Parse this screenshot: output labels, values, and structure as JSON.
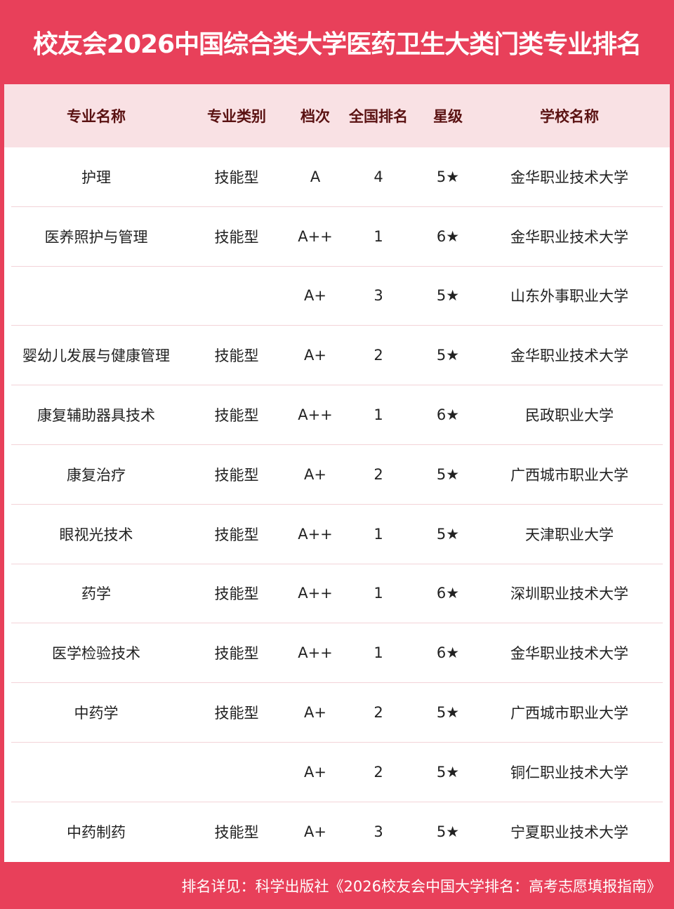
{
  "title": "校友会2026中国综合类大学医药卫生大类门类专业排名",
  "headers": [
    "专业名称",
    "专业类别",
    "档次",
    "全国排名",
    "星级",
    "学校名称"
  ],
  "rows": [
    [
      "护理",
      "技能型",
      "A",
      "4",
      "5★",
      "金华职业技术大学"
    ],
    [
      "医养照护与管理",
      "技能型",
      "A++",
      "1",
      "6★",
      "金华职业技术大学"
    ],
    [
      "",
      "",
      "A+",
      "3",
      "5★",
      "山东外事职业大学"
    ],
    [
      "婴幼儿发展与健康管理",
      "技能型",
      "A+",
      "2",
      "5★",
      "金华职业技术大学"
    ],
    [
      "康复辅助器具技术",
      "技能型",
      "A++",
      "1",
      "6★",
      "民政职业大学"
    ],
    [
      "康复治疗",
      "技能型",
      "A+",
      "2",
      "5★",
      "广西城市职业大学"
    ],
    [
      "眼视光技术",
      "技能型",
      "A++",
      "1",
      "5★",
      "天津职业大学"
    ],
    [
      "药学",
      "技能型",
      "A++",
      "1",
      "6★",
      "深圳职业技术大学"
    ],
    [
      "医学检验技术",
      "技能型",
      "A++",
      "1",
      "6★",
      "金华职业技术大学"
    ],
    [
      "中药学",
      "技能型",
      "A+",
      "2",
      "5★",
      "广西城市职业大学"
    ],
    [
      "",
      "",
      "A+",
      "2",
      "5★",
      "铜仁职业技术大学"
    ],
    [
      "中药制药",
      "技能型",
      "A+",
      "3",
      "5★",
      "宁夏职业技术大学"
    ]
  ],
  "footer": "排名详见：科学出版社《2026校友会中国大学排名：高考志愿填报指南》",
  "colors": {
    "accent": "#e8405a",
    "header_bg": "#f9e1e4",
    "header_text": "#5a1212"
  }
}
